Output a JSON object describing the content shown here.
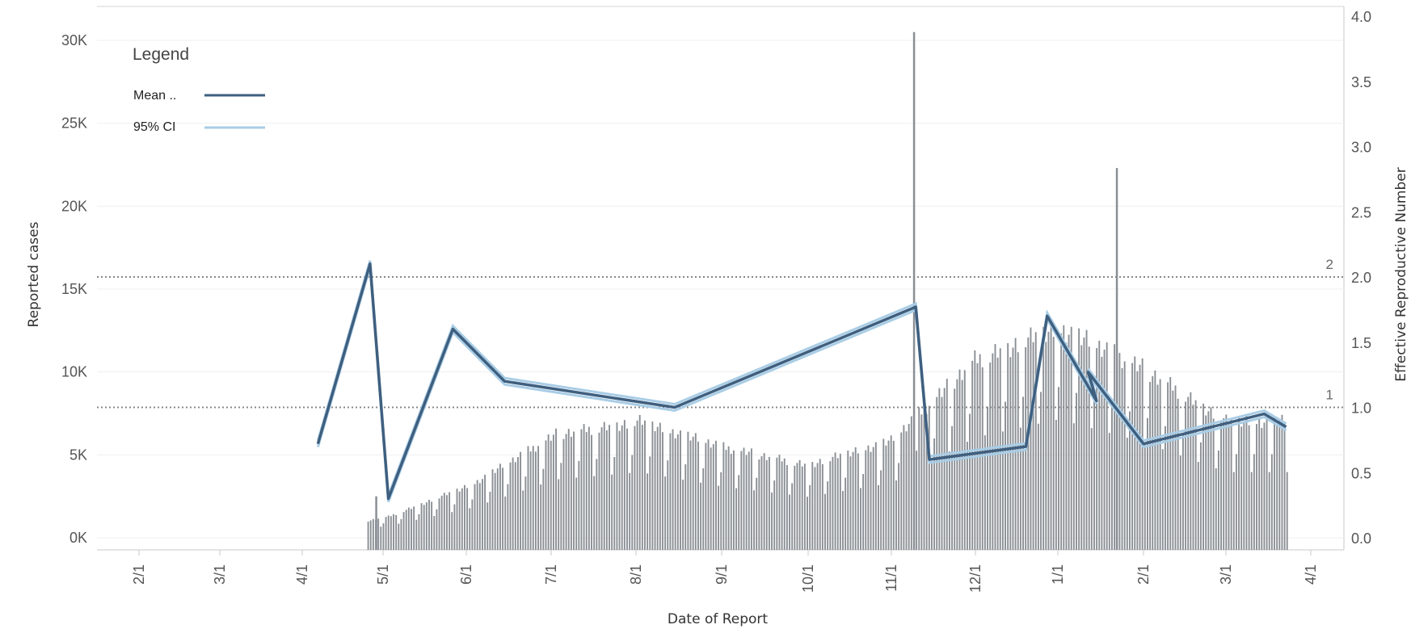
{
  "chart_data": {
    "type": "bar+line",
    "xlabel": "Date of Report",
    "ylabel_left": "Reported cases",
    "ylabel_right": "Effective Reproductive Number",
    "x_ticks": [
      "2/1",
      "3/1",
      "4/1",
      "5/1",
      "6/1",
      "7/1",
      "8/1",
      "9/1",
      "10/1",
      "11/1",
      "12/1",
      "1/1",
      "2/1",
      "3/1",
      "4/1"
    ],
    "y_left_ticks": [
      "0K",
      "5K",
      "10K",
      "15K",
      "20K",
      "25K",
      "30K"
    ],
    "y_left_range": [
      0,
      32000
    ],
    "y_right_ticks": [
      "0.0",
      "0.5",
      "1.0",
      "1.5",
      "2.0",
      "2.5",
      "3.0",
      "3.5",
      "4.0"
    ],
    "y_right_range": [
      0,
      4.0
    ],
    "reference_lines": [
      {
        "value": 1,
        "label": "1"
      },
      {
        "value": 2,
        "label": "2"
      }
    ],
    "legend": {
      "title": "Legend",
      "items": [
        {
          "label": "Mean ..",
          "color": "#3f5f7f"
        },
        {
          "label": "95% CI",
          "color": "#a9cde6"
        }
      ]
    },
    "cases_monthly_approx": [
      {
        "month": "3/1",
        "value": 0
      },
      {
        "month": "4/1",
        "value": 300
      },
      {
        "month": "5/1",
        "value": 1300
      },
      {
        "month": "6/1",
        "value": 3300
      },
      {
        "month": "7/1",
        "value": 6400
      },
      {
        "month": "8/1",
        "value": 7200
      },
      {
        "month": "9/1",
        "value": 5600
      },
      {
        "month": "10/1",
        "value": 4500
      },
      {
        "month": "11/1",
        "value": 6000
      },
      {
        "month": "12/1",
        "value": 11000
      },
      {
        "month": "1/1",
        "value": 13000
      },
      {
        "month": "2/1",
        "value": 10500
      },
      {
        "month": "3/1",
        "value": 7200
      }
    ],
    "cases_spikes": [
      {
        "date": "3/29",
        "value": 2500
      },
      {
        "date": "10/9",
        "value": 30500
      },
      {
        "date": "1/22",
        "value": 22300
      }
    ],
    "rt_mean_key_points": [
      {
        "date": "3/7",
        "value": 0.72
      },
      {
        "date": "3/27",
        "value": 2.1
      },
      {
        "date": "4/3",
        "value": 0.3
      },
      {
        "date": "4/27",
        "value": 1.6
      },
      {
        "date": "5/15",
        "value": 1.2
      },
      {
        "date": "7/15",
        "value": 1.0
      },
      {
        "date": "10/10",
        "value": 1.77
      },
      {
        "date": "10/15",
        "value": 0.6
      },
      {
        "date": "11/20",
        "value": 0.7
      },
      {
        "date": "11/28",
        "value": 1.7
      },
      {
        "date": "12/15",
        "value": 1.05
      },
      {
        "date": "1/12",
        "value": 1.27
      },
      {
        "date": "2/1",
        "value": 0.72
      },
      {
        "date": "3/15",
        "value": 0.95
      },
      {
        "date": "3/23",
        "value": 0.85
      }
    ]
  }
}
